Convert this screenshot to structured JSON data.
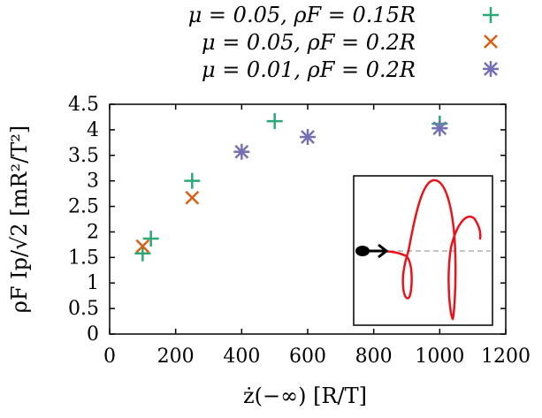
{
  "chart_data": {
    "type": "scatter",
    "xlabel": "ż(−∞)  [R/T]",
    "ylabel": "ρF Ip/√2   [mR²/T²]",
    "xlim": [
      0,
      1200
    ],
    "ylim": [
      0,
      4.5
    ],
    "x_ticks": [
      "0",
      "200",
      "400",
      "600",
      "800",
      "1000",
      "1200"
    ],
    "y_ticks": [
      "0",
      "0.5",
      "1",
      "1.5",
      "2",
      "2.5",
      "3",
      "3.5",
      "4",
      "4.5"
    ],
    "legend_position": "top-right",
    "series": [
      {
        "name": "μ = 0.05, ρF = 0.15R",
        "marker": "plus",
        "color": "#2aa876",
        "points": [
          [
            100,
            1.58
          ],
          [
            125,
            1.87
          ],
          [
            250,
            3.0
          ],
          [
            500,
            4.17
          ],
          [
            1000,
            4.12
          ]
        ]
      },
      {
        "name": "μ = 0.05, ρF = 0.2R",
        "marker": "x",
        "color": "#d95f17",
        "points": [
          [
            100,
            1.72
          ],
          [
            250,
            2.67
          ]
        ]
      },
      {
        "name": "μ = 0.01, ρF = 0.2R",
        "marker": "star",
        "color": "#7570b3",
        "points": [
          [
            400,
            3.57
          ],
          [
            600,
            3.86
          ],
          [
            1000,
            4.03
          ]
        ]
      }
    ]
  }
}
